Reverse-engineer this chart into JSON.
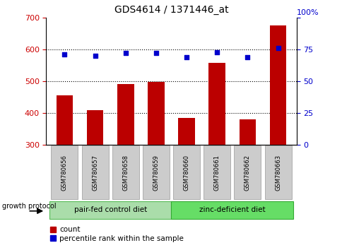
{
  "title": "GDS4614 / 1371446_at",
  "samples": [
    "GSM780656",
    "GSM780657",
    "GSM780658",
    "GSM780659",
    "GSM780660",
    "GSM780661",
    "GSM780662",
    "GSM780663"
  ],
  "counts": [
    455,
    410,
    492,
    497,
    386,
    557,
    381,
    676
  ],
  "percentiles": [
    71,
    70,
    72,
    72,
    69,
    73,
    69,
    76
  ],
  "ylim_left": [
    300,
    700
  ],
  "ylim_right": [
    0,
    100
  ],
  "yticks_left": [
    300,
    400,
    500,
    600,
    700
  ],
  "yticks_right": [
    0,
    25,
    50,
    75,
    100
  ],
  "bar_color": "#bb0000",
  "dot_color": "#0000cc",
  "bar_bottom": 300,
  "group1_label": "pair-fed control diet",
  "group2_label": "zinc-deficient diet",
  "group1_color": "#aaddaa",
  "group2_color": "#66dd66",
  "protocol_label": "growth protocol",
  "legend_count": "count",
  "legend_pct": "percentile rank within the sample",
  "tick_label_color_left": "#cc0000",
  "tick_label_color_right": "#0000cc",
  "label_box_color": "#cccccc",
  "label_box_edge": "#999999"
}
